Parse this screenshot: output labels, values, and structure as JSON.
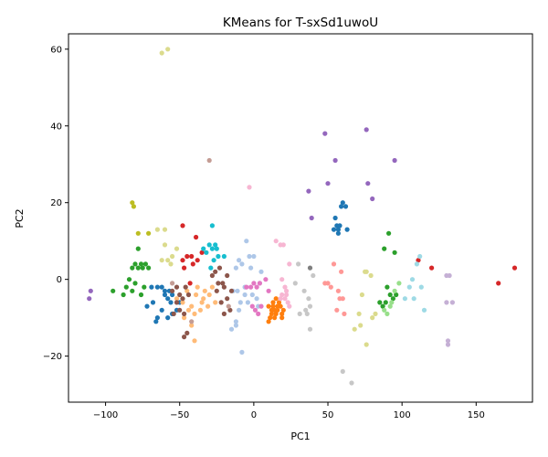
{
  "chart_data": {
    "type": "scatter",
    "title": "KMeans for T-sxSd1uwoU",
    "xlabel": "PC1",
    "ylabel": "PC2",
    "xlim": [
      -125,
      188
    ],
    "ylim": [
      -32,
      64
    ],
    "xticks": [
      -100,
      -50,
      0,
      50,
      100,
      150
    ],
    "yticks": [
      -20,
      0,
      20,
      40,
      60
    ],
    "xtick_labels": [
      "−100",
      "−50",
      "0",
      "50",
      "100",
      "150"
    ],
    "ytick_labels": [
      "−20",
      "0",
      "20",
      "40",
      "60"
    ],
    "grid": false,
    "legend": "none",
    "series": [
      {
        "color": "#1f77b4",
        "points": [
          [
            -72,
            -7
          ],
          [
            -68,
            -6
          ],
          [
            -65,
            -10
          ],
          [
            -66,
            -11
          ],
          [
            -62,
            -8
          ],
          [
            -60,
            -4
          ],
          [
            -58,
            -5
          ],
          [
            -60,
            -3
          ],
          [
            -62,
            -2
          ],
          [
            -65,
            -2
          ],
          [
            -56,
            -6
          ],
          [
            -55,
            -9
          ],
          [
            -58,
            -10
          ],
          [
            -52,
            -8
          ],
          [
            -50,
            -6
          ],
          [
            -57,
            -3
          ],
          [
            -55,
            -4
          ],
          [
            -69,
            -2
          ],
          [
            54,
            13
          ],
          [
            56,
            14
          ],
          [
            58,
            14
          ],
          [
            57,
            12
          ],
          [
            63,
            13
          ],
          [
            59,
            19
          ],
          [
            60,
            20
          ],
          [
            62,
            19
          ],
          [
            55,
            16
          ],
          [
            57,
            13
          ]
        ]
      },
      {
        "color": "#aec7e8",
        "points": [
          [
            -10,
            5
          ],
          [
            -12,
            3
          ],
          [
            -8,
            4
          ],
          [
            -5,
            10
          ],
          [
            -3,
            6
          ],
          [
            0,
            6
          ],
          [
            -2,
            3
          ],
          [
            -6,
            -4
          ],
          [
            -9,
            -6
          ],
          [
            -12,
            -11
          ],
          [
            -8,
            -19
          ],
          [
            -12,
            -12
          ],
          [
            -15,
            -13
          ],
          [
            -4,
            -6
          ],
          [
            -10,
            -8
          ],
          [
            -14,
            -3
          ],
          [
            5,
            2
          ],
          [
            -1,
            -4
          ],
          [
            2,
            -5
          ],
          [
            4,
            -1
          ],
          [
            -6,
            -2
          ],
          [
            -11,
            -3
          ],
          [
            3,
            -7
          ]
        ]
      },
      {
        "color": "#ff7f0e",
        "points": [
          [
            10,
            -7
          ],
          [
            12,
            -8
          ],
          [
            13,
            -7
          ],
          [
            15,
            -9
          ],
          [
            14,
            -10
          ],
          [
            16,
            -8
          ],
          [
            18,
            -7
          ],
          [
            19,
            -9
          ],
          [
            20,
            -8
          ],
          [
            11,
            -10
          ],
          [
            13,
            -6
          ],
          [
            15,
            -5
          ],
          [
            17,
            -6
          ],
          [
            19,
            -10
          ],
          [
            12,
            -9
          ],
          [
            14,
            -8
          ],
          [
            16,
            -7
          ],
          [
            10,
            -11
          ]
        ]
      },
      {
        "color": "#ffbb78",
        "points": [
          [
            -52,
            -5
          ],
          [
            -48,
            -6
          ],
          [
            -45,
            -3
          ],
          [
            -44,
            -8
          ],
          [
            -42,
            -7
          ],
          [
            -40,
            -9
          ],
          [
            -39,
            -4
          ],
          [
            -38,
            -2
          ],
          [
            -35,
            -6
          ],
          [
            -33,
            -3
          ],
          [
            -31,
            -7
          ],
          [
            -30,
            -4
          ],
          [
            -40,
            -16
          ],
          [
            -42,
            -12
          ],
          [
            -47,
            -10
          ],
          [
            -36,
            -8
          ],
          [
            -34,
            -5
          ],
          [
            -28,
            -2
          ],
          [
            -26,
            -6
          ]
        ]
      },
      {
        "color": "#2ca02c",
        "points": [
          [
            -82,
            3
          ],
          [
            -80,
            4
          ],
          [
            -78,
            3
          ],
          [
            -76,
            4
          ],
          [
            -78,
            8
          ],
          [
            -75,
            3
          ],
          [
            -73,
            4
          ],
          [
            -71,
            3
          ],
          [
            -74,
            -2
          ],
          [
            -76,
            -4
          ],
          [
            -80,
            -1
          ],
          [
            -84,
            0
          ],
          [
            -86,
            -2
          ],
          [
            -88,
            -4
          ],
          [
            -95,
            -3
          ],
          [
            -82,
            -3
          ],
          [
            88,
            8
          ],
          [
            90,
            -2
          ],
          [
            92,
            -4
          ],
          [
            94,
            -5
          ],
          [
            96,
            -4
          ],
          [
            95,
            7
          ],
          [
            91,
            12
          ],
          [
            85,
            -6
          ],
          [
            87,
            -7
          ],
          [
            89,
            -6
          ]
        ]
      },
      {
        "color": "#98df8a",
        "points": [
          [
            98,
            -1
          ],
          [
            95,
            -3
          ],
          [
            93,
            -6
          ],
          [
            90,
            -9
          ],
          [
            88,
            -8
          ],
          [
            92,
            -7
          ]
        ]
      },
      {
        "color": "#d62728",
        "points": [
          [
            -48,
            5
          ],
          [
            -45,
            6
          ],
          [
            -42,
            6
          ],
          [
            -38,
            5
          ],
          [
            -41,
            4
          ],
          [
            -47,
            3
          ],
          [
            -43,
            -1
          ],
          [
            -39,
            11
          ],
          [
            -48,
            14
          ],
          [
            -35,
            7
          ],
          [
            165,
            -1
          ],
          [
            176,
            3
          ],
          [
            111,
            5
          ],
          [
            120,
            3
          ]
        ]
      },
      {
        "color": "#ff9896",
        "points": [
          [
            48,
            -1
          ],
          [
            50,
            -1
          ],
          [
            52,
            -2
          ],
          [
            57,
            -3
          ],
          [
            58,
            -5
          ],
          [
            61,
            -9
          ],
          [
            56,
            -8
          ],
          [
            59,
            2
          ],
          [
            54,
            4
          ],
          [
            60,
            -5
          ]
        ]
      },
      {
        "color": "#9467bd",
        "points": [
          [
            -110,
            -3
          ],
          [
            -111,
            -5
          ],
          [
            48,
            38
          ],
          [
            50,
            25
          ],
          [
            55,
            31
          ],
          [
            39,
            16
          ],
          [
            37,
            23
          ],
          [
            76,
            39
          ],
          [
            77,
            25
          ],
          [
            80,
            21
          ],
          [
            95,
            31
          ]
        ]
      },
      {
        "color": "#c5b0d5",
        "points": [
          [
            130,
            1
          ],
          [
            132,
            1
          ],
          [
            131,
            -16
          ],
          [
            131,
            -17
          ],
          [
            134,
            -6
          ],
          [
            130,
            -6
          ]
        ]
      },
      {
        "color": "#8c564b",
        "points": [
          [
            -55,
            -3
          ],
          [
            -52,
            -2
          ],
          [
            -50,
            -4
          ],
          [
            -48,
            -5
          ],
          [
            -46,
            -2
          ],
          [
            -44,
            -4
          ],
          [
            -52,
            -6
          ],
          [
            -50,
            -8
          ],
          [
            -47,
            -9
          ],
          [
            -54,
            -9
          ],
          [
            -45,
            -14
          ],
          [
            -47,
            -15
          ],
          [
            -22,
            -6
          ],
          [
            -25,
            -3
          ],
          [
            -20,
            -2
          ],
          [
            -18,
            -5
          ],
          [
            -16,
            -8
          ],
          [
            -20,
            -9
          ],
          [
            -28,
            1
          ],
          [
            -26,
            2
          ],
          [
            -23,
            3
          ],
          [
            -21,
            -1
          ],
          [
            -18,
            1
          ],
          [
            -15,
            -3
          ],
          [
            -24,
            -1
          ]
        ]
      },
      {
        "color": "#c49c94",
        "points": [
          [
            -30,
            31
          ],
          [
            -55,
            -1
          ],
          [
            -42,
            -11
          ],
          [
            -17,
            -7
          ]
        ]
      },
      {
        "color": "#e377c2",
        "points": [
          [
            -5,
            -2
          ],
          [
            -2,
            -2
          ],
          [
            0,
            -1
          ],
          [
            2,
            -2
          ],
          [
            4,
            -1
          ],
          [
            -1,
            -7
          ],
          [
            1,
            -8
          ],
          [
            3,
            -9
          ],
          [
            5,
            -7
          ],
          [
            8,
            0
          ],
          [
            10,
            -3
          ]
        ]
      },
      {
        "color": "#f7b6d2",
        "points": [
          [
            15,
            10
          ],
          [
            18,
            9
          ],
          [
            20,
            9
          ],
          [
            24,
            4
          ],
          [
            22,
            -3
          ],
          [
            21,
            -5
          ],
          [
            23,
            -6
          ],
          [
            24,
            -7
          ],
          [
            18,
            -5
          ],
          [
            19,
            -4
          ],
          [
            21,
            -2
          ],
          [
            22,
            -4
          ],
          [
            -3,
            24
          ],
          [
            19,
            0
          ]
        ]
      },
      {
        "color": "#7f7f7f",
        "points": [
          [
            38,
            3
          ]
        ]
      },
      {
        "color": "#c7c7c7",
        "points": [
          [
            30,
            4
          ],
          [
            34,
            -3
          ],
          [
            37,
            -5
          ],
          [
            38,
            -7
          ],
          [
            36,
            -9
          ],
          [
            35,
            -8
          ],
          [
            31,
            -9
          ],
          [
            28,
            -1
          ],
          [
            38,
            -13
          ],
          [
            60,
            -24
          ],
          [
            66,
            -27
          ],
          [
            40,
            1
          ]
        ]
      },
      {
        "color": "#bcbd22",
        "points": [
          [
            -82,
            20
          ],
          [
            -81,
            19
          ],
          [
            -78,
            12
          ],
          [
            -71,
            12
          ]
        ]
      },
      {
        "color": "#dbdb8d",
        "points": [
          [
            -62,
            59
          ],
          [
            -58,
            60
          ],
          [
            -60,
            13
          ],
          [
            -55,
            6
          ],
          [
            -58,
            5
          ],
          [
            -56,
            4
          ],
          [
            -62,
            5
          ],
          [
            -60,
            9
          ],
          [
            -65,
            13
          ],
          [
            -52,
            8
          ],
          [
            76,
            2
          ],
          [
            79,
            1
          ],
          [
            75,
            2
          ],
          [
            73,
            -4
          ],
          [
            71,
            -9
          ],
          [
            76,
            -17
          ],
          [
            72,
            -12
          ],
          [
            82,
            -9
          ],
          [
            80,
            -10
          ],
          [
            68,
            -13
          ]
        ]
      },
      {
        "color": "#17becf",
        "points": [
          [
            -28,
            14
          ],
          [
            -30,
            9
          ],
          [
            -28,
            8
          ],
          [
            -26,
            9
          ],
          [
            -25,
            8
          ],
          [
            -32,
            7
          ],
          [
            -34,
            8
          ],
          [
            -24,
            6
          ],
          [
            -27,
            5
          ],
          [
            -29,
            3
          ],
          [
            -20,
            6
          ]
        ]
      },
      {
        "color": "#9edae5",
        "points": [
          [
            105,
            -2
          ],
          [
            108,
            -5
          ],
          [
            110,
            4
          ],
          [
            112,
            6
          ],
          [
            115,
            -8
          ],
          [
            113,
            -2
          ],
          [
            102,
            -5
          ],
          [
            107,
            0
          ]
        ]
      }
    ]
  }
}
